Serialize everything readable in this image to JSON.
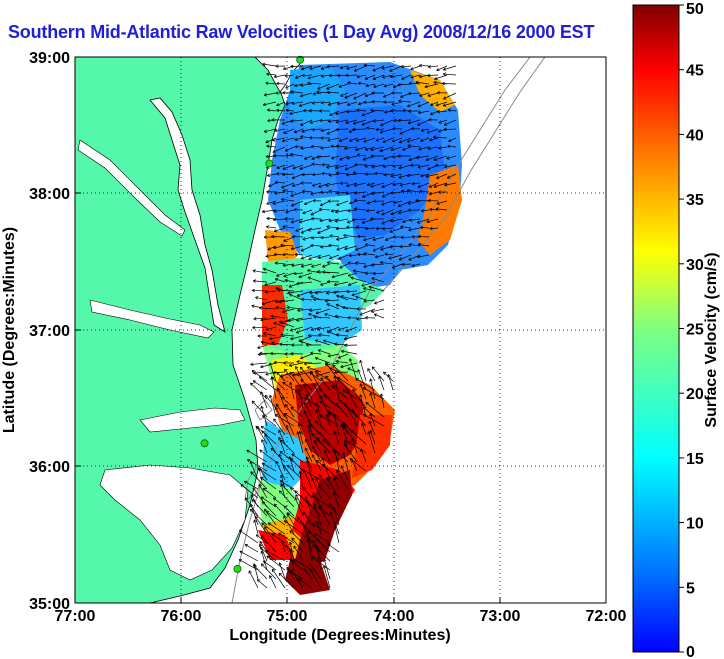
{
  "title": "Southern Mid-Atlantic Raw Velocities (1 Day Avg) 2008/12/16 2000 EST",
  "map": {
    "x_axis_label": "Longitude (Degrees:Minutes)",
    "y_axis_label": "Latitude (Degrees:Minutes)",
    "x_ticks": [
      "77:00",
      "76:00",
      "75:00",
      "74:00",
      "73:00",
      "72:00"
    ],
    "y_ticks": [
      "39:00",
      "38:00",
      "37:00",
      "36:00",
      "35:00"
    ],
    "lon_range": [
      -77,
      -72
    ],
    "lat_range": [
      35,
      39
    ],
    "land_color": "#55f7aa",
    "grid": "dotted"
  },
  "colorbar": {
    "label": "Surface Velocity (cm/s)",
    "ticks": [
      "0",
      "5",
      "10",
      "15",
      "20",
      "25",
      "30",
      "35",
      "40",
      "45",
      "50"
    ],
    "range": [
      0,
      50
    ],
    "colormap": "jet"
  },
  "stations": [
    {
      "lon": -74.88,
      "lat": 38.98
    },
    {
      "lon": -75.17,
      "lat": 38.22
    },
    {
      "lon": -75.78,
      "lat": 36.17
    },
    {
      "lon": -75.47,
      "lat": 35.25
    }
  ]
}
